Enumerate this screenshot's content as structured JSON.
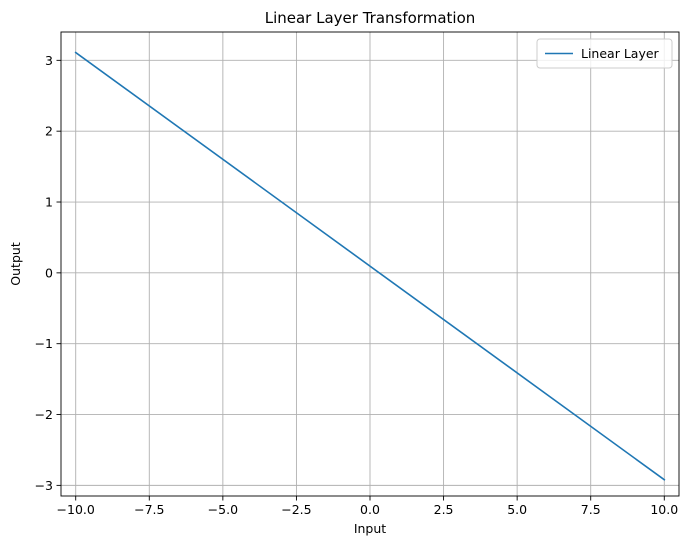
{
  "chart_data": {
    "type": "line",
    "title": "Linear Layer Transformation",
    "xlabel": "Input",
    "ylabel": "Output",
    "xlim": [
      -10.5,
      10.5
    ],
    "ylim": [
      -3.15,
      3.4
    ],
    "xticks": [
      -10.0,
      -7.5,
      -5.0,
      -2.5,
      0.0,
      2.5,
      5.0,
      7.5,
      10.0
    ],
    "xtick_labels": [
      "−10.0",
      "−7.5",
      "−5.0",
      "−2.5",
      "0.0",
      "2.5",
      "5.0",
      "7.5",
      "10.0"
    ],
    "yticks": [
      -3,
      -2,
      -1,
      0,
      1,
      2,
      3
    ],
    "ytick_labels": [
      "−3",
      "−2",
      "−1",
      "0",
      "1",
      "2",
      "3"
    ],
    "grid": true,
    "legend_position": "top-right",
    "series": [
      {
        "name": "Linear Layer",
        "color": "#1f77b4",
        "x": [
          -10.0,
          10.0
        ],
        "y": [
          3.11,
          -2.92
        ]
      }
    ]
  }
}
